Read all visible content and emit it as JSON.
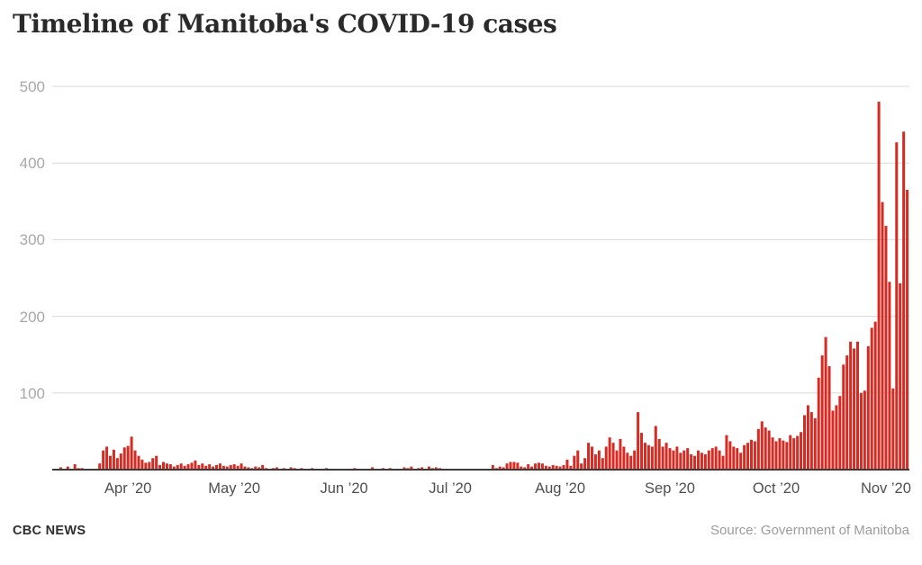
{
  "header": {
    "title": "Timeline of Manitoba's COVID-19 cases"
  },
  "footer": {
    "brand": "CBC NEWS",
    "source": "Source: Government of Manitoba"
  },
  "chart_data": {
    "type": "bar",
    "title": "Timeline of Manitoba's COVID-19 cases",
    "xlabel": "",
    "ylabel": "",
    "ylim": [
      0,
      500
    ],
    "y_ticks": [
      100,
      200,
      300,
      400,
      500
    ],
    "x_tick_labels": [
      "Apr ’20",
      "May ’20",
      "Jun ’20",
      "Jul ’20",
      "Aug ’20",
      "Sep ’20",
      "Oct ’20",
      "Nov ’20"
    ],
    "x_tick_indices": [
      20,
      50,
      81,
      111,
      142,
      173,
      203,
      234
    ],
    "grid": "horizontal",
    "legend": "none",
    "bar_color": "#d62b23",
    "axis_color": "#3a3a3a",
    "grid_color": "#d9d9d9",
    "frequency": "daily",
    "x_start": "2020-03-12",
    "x_end": "2020-11-07",
    "max_value": 480,
    "max_value_date": "2020-10-30",
    "daily_cases": [
      1,
      3,
      0,
      4,
      1,
      7,
      2,
      2,
      1,
      1,
      0,
      1,
      8,
      25,
      30,
      18,
      26,
      15,
      21,
      29,
      31,
      43,
      25,
      18,
      13,
      9,
      10,
      15,
      18,
      6,
      10,
      8,
      7,
      4,
      6,
      8,
      5,
      7,
      9,
      12,
      6,
      8,
      5,
      7,
      4,
      6,
      8,
      5,
      4,
      6,
      7,
      5,
      8,
      4,
      3,
      2,
      4,
      3,
      6,
      2,
      1,
      2,
      3,
      1,
      2,
      1,
      3,
      2,
      1,
      2,
      1,
      0,
      2,
      1,
      0,
      1,
      2,
      0,
      1,
      1,
      0,
      1,
      0,
      0,
      2,
      1,
      0,
      1,
      0,
      3,
      1,
      0,
      2,
      1,
      2,
      1,
      0,
      1,
      3,
      2,
      4,
      1,
      2,
      3,
      1,
      4,
      2,
      3,
      2,
      1,
      0,
      0,
      1,
      0,
      0,
      1,
      0,
      0,
      1,
      0,
      0,
      1,
      0,
      6,
      2,
      4,
      3,
      8,
      10,
      10,
      9,
      4,
      3,
      7,
      4,
      8,
      9,
      8,
      5,
      4,
      6,
      5,
      4,
      6,
      13,
      5,
      18,
      25,
      8,
      15,
      35,
      30,
      20,
      25,
      15,
      30,
      42,
      35,
      25,
      40,
      30,
      22,
      18,
      25,
      75,
      48,
      35,
      32,
      30,
      57,
      40,
      30,
      35,
      28,
      25,
      30,
      22,
      25,
      28,
      20,
      18,
      25,
      22,
      20,
      25,
      28,
      30,
      25,
      18,
      45,
      37,
      30,
      28,
      22,
      32,
      35,
      39,
      37,
      53,
      63,
      55,
      51,
      42,
      37,
      41,
      38,
      36,
      45,
      41,
      44,
      49,
      71,
      84,
      75,
      67,
      120,
      149,
      173,
      135,
      77,
      84,
      96,
      137,
      149,
      167,
      158,
      167,
      100,
      103,
      161,
      185,
      193,
      480,
      349,
      318,
      245,
      106,
      427,
      243,
      441,
      365
    ]
  }
}
